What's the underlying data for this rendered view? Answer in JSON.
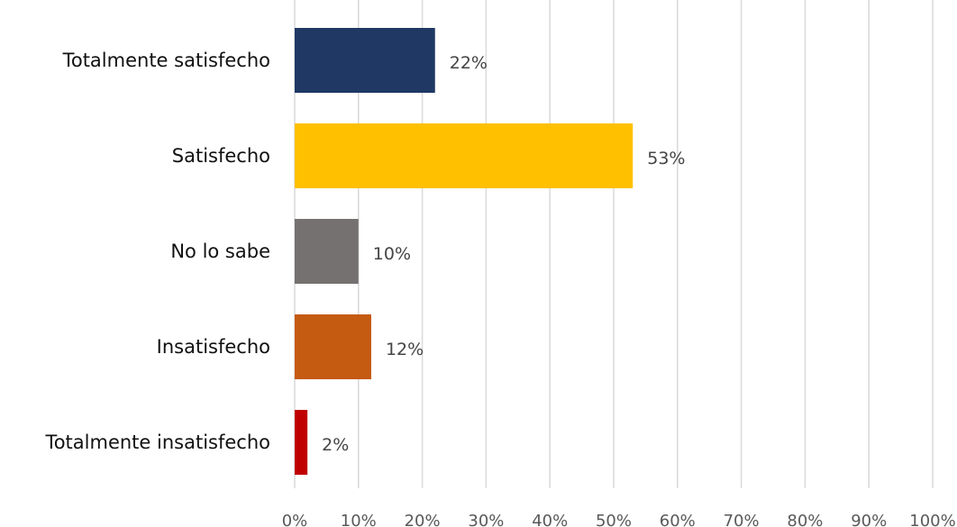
{
  "chart_data": {
    "type": "bar",
    "orientation": "horizontal",
    "title": "",
    "xlabel": "",
    "ylabel": "",
    "categories": [
      "Totalmente satisfecho",
      "Satisfecho",
      "No lo sabe",
      "Insatisfecho",
      "Totalmente insatisfecho"
    ],
    "values": [
      22,
      53,
      10,
      12,
      2
    ],
    "value_labels": [
      "22%",
      "53%",
      "10%",
      "12%",
      "2%"
    ],
    "colors": [
      "#1f3864",
      "#ffc000",
      "#767171",
      "#c55a11",
      "#c00000"
    ],
    "xlim": [
      0,
      100
    ],
    "xticks": [
      "0%",
      "10%",
      "20%",
      "30%",
      "40%",
      "50%",
      "60%",
      "70%",
      "80%",
      "90%",
      "100%"
    ],
    "grid": "vertical",
    "legend": "none"
  }
}
